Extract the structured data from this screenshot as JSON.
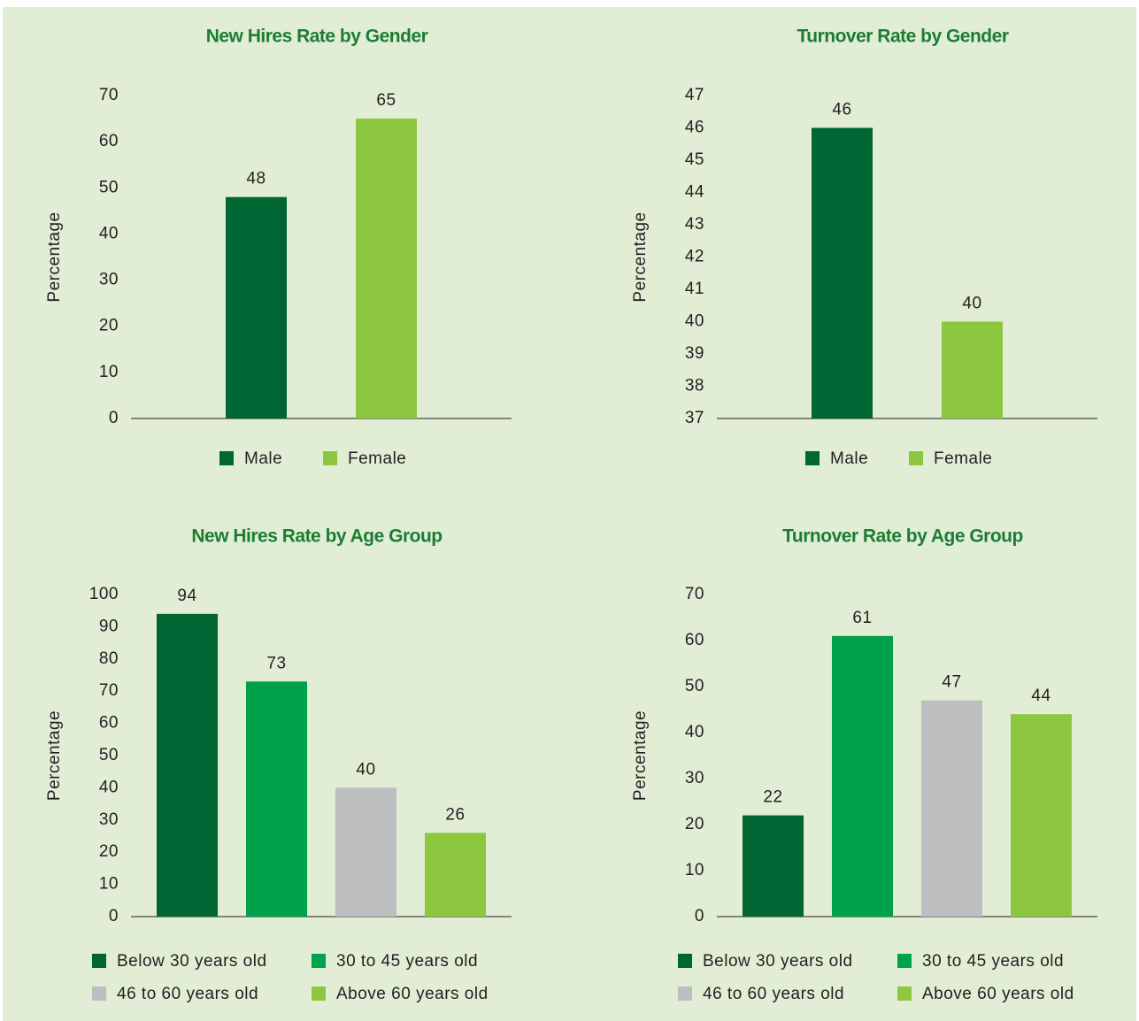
{
  "chart_data": [
    {
      "type": "bar",
      "title": "New Hires Rate by Gender",
      "y_label": "Percentage",
      "categories": [
        "Male",
        "Female"
      ],
      "values": [
        48,
        65
      ],
      "colors": [
        "#006633",
        "#8dc63f"
      ],
      "ylim": [
        0,
        70
      ],
      "yticks": [
        0,
        10,
        20,
        30,
        40,
        50,
        60,
        70
      ]
    },
    {
      "type": "bar",
      "title": "Turnover Rate by Gender",
      "y_label": "Percentage",
      "categories": [
        "Male",
        "Female"
      ],
      "values": [
        46,
        40
      ],
      "colors": [
        "#006633",
        "#8dc63f"
      ],
      "ylim": [
        37,
        47
      ],
      "yticks": [
        37,
        38,
        39,
        40,
        41,
        42,
        43,
        44,
        45,
        46,
        47
      ]
    },
    {
      "type": "bar",
      "title": "New Hires Rate by Age Group",
      "y_label": "Percentage",
      "categories": [
        "Below 30 years old",
        "30 to 45 years old",
        "46 to 60 years old",
        "Above 60 years old"
      ],
      "values": [
        94,
        73,
        40,
        26
      ],
      "colors": [
        "#006633",
        "#00a14b",
        "#bcbec0",
        "#8dc63f"
      ],
      "ylim": [
        0,
        100
      ],
      "yticks": [
        0,
        10,
        20,
        30,
        40,
        50,
        60,
        70,
        80,
        90,
        100
      ]
    },
    {
      "type": "bar",
      "title": "Turnover Rate by Age Group",
      "y_label": "Percentage",
      "categories": [
        "Below 30 years old",
        "30 to 45 years old",
        "46 to 60 years old",
        "Above 60 years old"
      ],
      "values": [
        22,
        61,
        47,
        44
      ],
      "colors": [
        "#006633",
        "#00a14b",
        "#bcbec0",
        "#8dc63f"
      ],
      "ylim": [
        0,
        70
      ],
      "yticks": [
        0,
        10,
        20,
        30,
        40,
        50,
        60,
        70
      ]
    }
  ]
}
